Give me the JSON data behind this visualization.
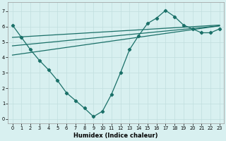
{
  "xlabel": "Humidex (Indice chaleur)",
  "background_color": "#d8f0f0",
  "grid_color": "#c0dede",
  "line_color": "#1a7068",
  "xlim": [
    -0.5,
    23.5
  ],
  "ylim": [
    -0.3,
    7.6
  ],
  "xticks": [
    0,
    1,
    2,
    3,
    4,
    5,
    6,
    7,
    8,
    9,
    10,
    11,
    12,
    13,
    14,
    15,
    16,
    17,
    18,
    19,
    20,
    21,
    22,
    23
  ],
  "yticks": [
    0,
    1,
    2,
    3,
    4,
    5,
    6,
    7
  ],
  "series_main": {
    "x": [
      0,
      1,
      2,
      3,
      4,
      5,
      6,
      7,
      8,
      9,
      10,
      11,
      12,
      13,
      14,
      15,
      16,
      17,
      18,
      19,
      20,
      21,
      22,
      23
    ],
    "y": [
      6.1,
      5.3,
      4.5,
      3.8,
      3.2,
      2.5,
      1.7,
      1.2,
      0.7,
      0.15,
      0.5,
      1.6,
      3.0,
      4.5,
      5.4,
      6.2,
      6.55,
      7.05,
      6.65,
      6.1,
      5.85,
      5.6,
      5.6,
      5.85
    ]
  },
  "series_lines": [
    {
      "x": [
        0,
        23
      ],
      "y": [
        4.15,
        6.05
      ]
    },
    {
      "x": [
        0,
        23
      ],
      "y": [
        4.75,
        6.05
      ]
    },
    {
      "x": [
        0,
        23
      ],
      "y": [
        5.3,
        6.1
      ]
    }
  ]
}
